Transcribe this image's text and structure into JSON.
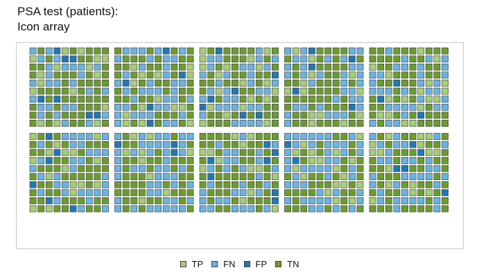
{
  "title_lines": [
    "PSA test (patients):",
    "Icon array"
  ],
  "colors": {
    "TP": "#a6cd78",
    "FN": "#6ab4e0",
    "FP": "#2079b0",
    "TN": "#6c9c2e",
    "border": "#303030"
  },
  "chart_data": {
    "type": "icon_array",
    "total": 1000,
    "categories": [
      "TP",
      "FN",
      "FP",
      "TN"
    ],
    "counts": {
      "TP": 150,
      "FN": 350,
      "FP": 50,
      "TN": 450
    },
    "legend": {
      "position": "bottom",
      "labels": [
        "TP",
        "FN",
        "FP",
        "TN"
      ]
    },
    "layout": {
      "block_rows": 2,
      "block_cols": 5,
      "rows_per_block": 10,
      "cols_per_block": 10
    }
  }
}
